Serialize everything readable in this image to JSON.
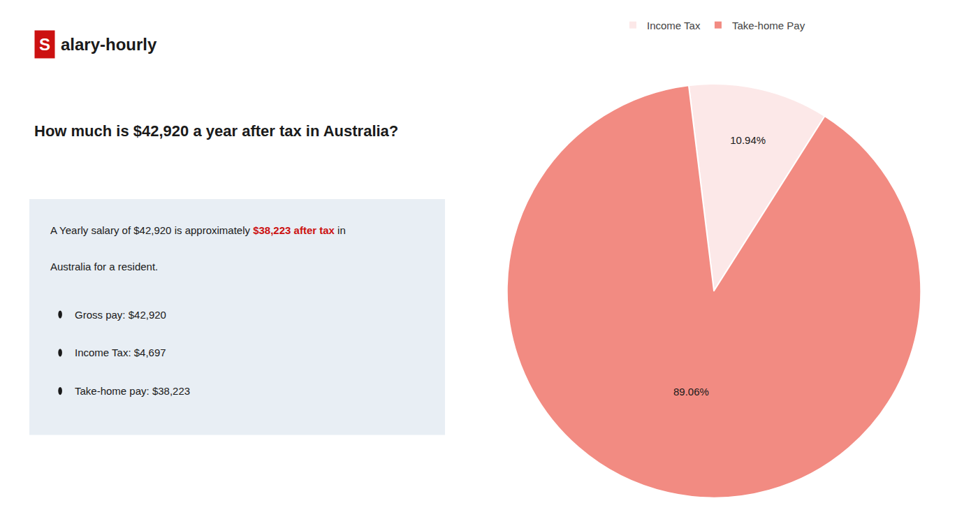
{
  "chart_data": {
    "type": "pie",
    "title": "How much is $42,920 a year after tax in Australia?",
    "categories": [
      "Income Tax",
      "Take-home Pay"
    ],
    "values": [
      10.94,
      89.06
    ],
    "value_labels": [
      "10.94%",
      "89.06%"
    ],
    "colors": [
      "#fce8e8",
      "#f28b82"
    ],
    "data_labels": true,
    "legend": "top",
    "annotations": [
      {
        "text": "S",
        "color": "#cc1111"
      },
      {
        "text": "alary-hourly"
      },
      {
        "text": "A Yearly salary of $42,920 is approximately "
      },
      {
        "text": "$38,223 after tax",
        "color": "#cc1111"
      },
      {
        "text": " in"
      },
      {
        "text": "Australia for a resident."
      },
      {
        "text": "Gross pay: $42,920"
      },
      {
        "text": "Income Tax: $4,697"
      },
      {
        "text": "Take-home pay: $38,223"
      }
    ]
  }
}
